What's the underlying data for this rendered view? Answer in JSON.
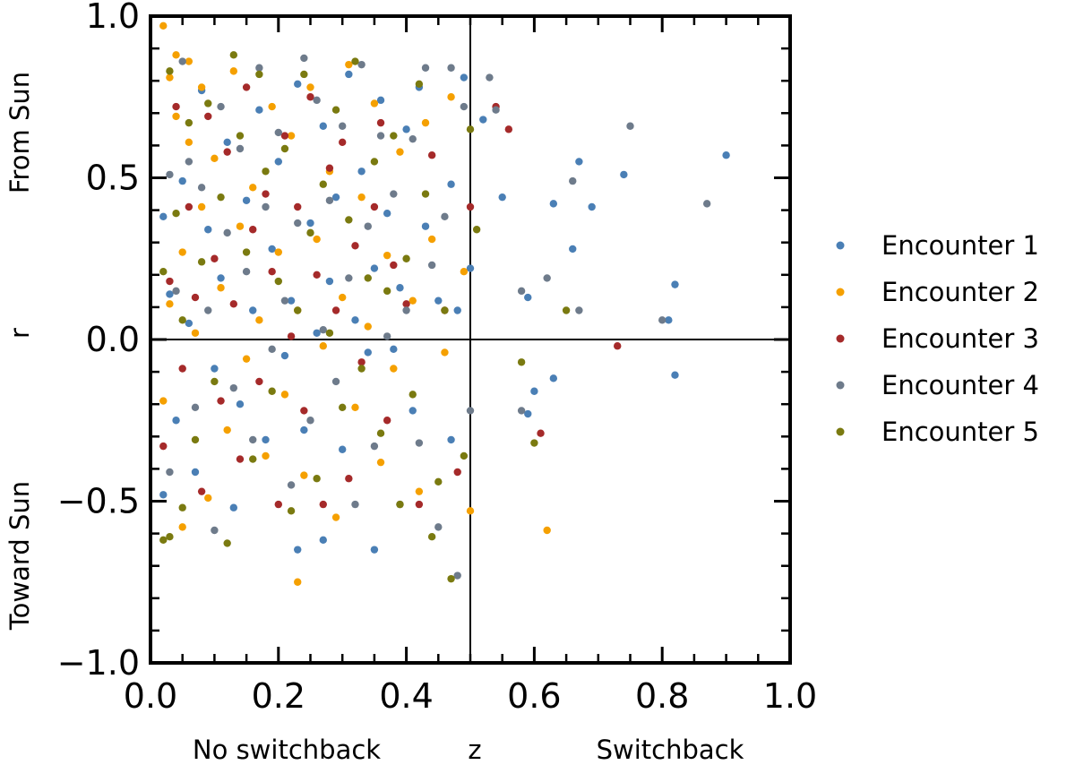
{
  "chart_data": {
    "type": "scatter",
    "title": "",
    "xlabel": "z",
    "ylabel": "r",
    "x_annotations": {
      "left": "No switchback",
      "right": "Switchback"
    },
    "y_annotations": {
      "top": "From Sun",
      "bottom": "Toward Sun"
    },
    "xlim": [
      0.0,
      1.0
    ],
    "ylim": [
      -1.0,
      1.0
    ],
    "x_ticks": [
      "0.0",
      "0.2",
      "0.4",
      "0.6",
      "0.8",
      "1.0"
    ],
    "y_ticks": [
      "1.0",
      "0.5",
      "0.0",
      "−0.5",
      "−1.0"
    ],
    "reference_lines": {
      "vertical_x": 0.5,
      "horizontal_y": 0.0
    },
    "legend_position": "right",
    "series": [
      {
        "name": "Encounter 1",
        "color": "#4a7fb5",
        "points": [
          [
            0.9,
            0.57
          ],
          [
            0.82,
            0.17
          ],
          [
            0.82,
            -0.11
          ],
          [
            0.81,
            0.06
          ],
          [
            0.74,
            0.51
          ],
          [
            0.69,
            0.41
          ],
          [
            0.67,
            0.55
          ],
          [
            0.66,
            0.28
          ],
          [
            0.63,
            0.42
          ],
          [
            0.63,
            -0.12
          ],
          [
            0.6,
            -0.16
          ],
          [
            0.59,
            -0.23
          ],
          [
            0.59,
            0.13
          ],
          [
            0.55,
            0.44
          ],
          [
            0.52,
            0.68
          ],
          [
            0.5,
            0.22
          ],
          [
            0.49,
            0.81
          ],
          [
            0.48,
            0.09
          ],
          [
            0.47,
            0.48
          ],
          [
            0.47,
            -0.31
          ],
          [
            0.45,
            0.12
          ],
          [
            0.43,
            0.35
          ],
          [
            0.42,
            0.78
          ],
          [
            0.41,
            -0.22
          ],
          [
            0.4,
            0.65
          ],
          [
            0.39,
            0.16
          ],
          [
            0.38,
            -0.03
          ],
          [
            0.37,
            0.39
          ],
          [
            0.36,
            0.74
          ],
          [
            0.35,
            -0.65
          ],
          [
            0.35,
            0.22
          ],
          [
            0.34,
            -0.04
          ],
          [
            0.33,
            0.52
          ],
          [
            0.32,
            0.06
          ],
          [
            0.31,
            0.82
          ],
          [
            0.3,
            -0.34
          ],
          [
            0.29,
            0.44
          ],
          [
            0.28,
            0.18
          ],
          [
            0.27,
            -0.62
          ],
          [
            0.27,
            0.66
          ],
          [
            0.26,
            0.02
          ],
          [
            0.25,
            0.36
          ],
          [
            0.24,
            -0.28
          ],
          [
            0.23,
            -0.65
          ],
          [
            0.23,
            0.79
          ],
          [
            0.22,
            0.12
          ],
          [
            0.21,
            -0.05
          ],
          [
            0.2,
            0.55
          ],
          [
            0.19,
            0.28
          ],
          [
            0.18,
            -0.31
          ],
          [
            0.17,
            0.71
          ],
          [
            0.16,
            0.09
          ],
          [
            0.15,
            0.43
          ],
          [
            0.14,
            -0.2
          ],
          [
            0.13,
            -0.52
          ],
          [
            0.12,
            0.61
          ],
          [
            0.11,
            0.19
          ],
          [
            0.1,
            -0.09
          ],
          [
            0.09,
            0.34
          ],
          [
            0.08,
            0.77
          ],
          [
            0.07,
            -0.41
          ],
          [
            0.06,
            0.05
          ],
          [
            0.05,
            0.49
          ],
          [
            0.04,
            -0.25
          ],
          [
            0.03,
            0.14
          ],
          [
            0.02,
            -0.48
          ],
          [
            0.02,
            0.38
          ]
        ]
      },
      {
        "name": "Encounter 2",
        "color": "#f5a000",
        "points": [
          [
            0.62,
            -0.59
          ],
          [
            0.5,
            -0.53
          ],
          [
            0.49,
            0.21
          ],
          [
            0.47,
            0.75
          ],
          [
            0.46,
            -0.04
          ],
          [
            0.44,
            0.31
          ],
          [
            0.43,
            0.67
          ],
          [
            0.42,
            -0.47
          ],
          [
            0.41,
            0.12
          ],
          [
            0.39,
            0.58
          ],
          [
            0.38,
            -0.09
          ],
          [
            0.37,
            0.26
          ],
          [
            0.36,
            -0.38
          ],
          [
            0.35,
            0.73
          ],
          [
            0.34,
            0.04
          ],
          [
            0.33,
            0.44
          ],
          [
            0.32,
            -0.21
          ],
          [
            0.31,
            0.85
          ],
          [
            0.3,
            0.13
          ],
          [
            0.29,
            -0.55
          ],
          [
            0.28,
            0.52
          ],
          [
            0.27,
            -0.02
          ],
          [
            0.26,
            0.31
          ],
          [
            0.25,
            0.78
          ],
          [
            0.24,
            -0.42
          ],
          [
            0.23,
            -0.75
          ],
          [
            0.23,
            0.09
          ],
          [
            0.22,
            0.63
          ],
          [
            0.21,
            -0.17
          ],
          [
            0.2,
            0.27
          ],
          [
            0.19,
            0.72
          ],
          [
            0.18,
            -0.36
          ],
          [
            0.17,
            0.06
          ],
          [
            0.16,
            0.47
          ],
          [
            0.15,
            -0.06
          ],
          [
            0.14,
            0.35
          ],
          [
            0.13,
            0.83
          ],
          [
            0.12,
            -0.28
          ],
          [
            0.11,
            0.16
          ],
          [
            0.1,
            0.56
          ],
          [
            0.09,
            -0.49
          ],
          [
            0.08,
            0.78
          ],
          [
            0.07,
            0.02
          ],
          [
            0.06,
            0.86
          ],
          [
            0.05,
            0.27
          ],
          [
            0.05,
            -0.58
          ],
          [
            0.04,
            0.69
          ],
          [
            0.03,
            0.11
          ],
          [
            0.03,
            0.81
          ],
          [
            0.02,
            0.97
          ],
          [
            0.02,
            -0.19
          ],
          [
            0.04,
            0.88
          ],
          [
            0.06,
            0.61
          ],
          [
            0.08,
            0.41
          ]
        ]
      },
      {
        "name": "Encounter 3",
        "color": "#a52a2a",
        "points": [
          [
            0.73,
            -0.02
          ],
          [
            0.61,
            -0.29
          ],
          [
            0.56,
            0.65
          ],
          [
            0.54,
            0.72
          ],
          [
            0.5,
            0.41
          ],
          [
            0.48,
            -0.41
          ],
          [
            0.46,
            0.09
          ],
          [
            0.44,
            0.57
          ],
          [
            0.42,
            -0.51
          ],
          [
            0.4,
            0.11
          ],
          [
            0.38,
            0.23
          ],
          [
            0.37,
            -0.25
          ],
          [
            0.36,
            0.67
          ],
          [
            0.35,
            0.41
          ],
          [
            0.33,
            -0.07
          ],
          [
            0.32,
            0.29
          ],
          [
            0.31,
            -0.43
          ],
          [
            0.3,
            0.61
          ],
          [
            0.29,
            0.09
          ],
          [
            0.28,
            0.53
          ],
          [
            0.27,
            -0.51
          ],
          [
            0.26,
            0.2
          ],
          [
            0.25,
            0.75
          ],
          [
            0.24,
            -0.22
          ],
          [
            0.23,
            0.41
          ],
          [
            0.22,
            0.01
          ],
          [
            0.21,
            0.63
          ],
          [
            0.2,
            -0.51
          ],
          [
            0.19,
            0.21
          ],
          [
            0.18,
            0.45
          ],
          [
            0.17,
            -0.13
          ],
          [
            0.16,
            0.34
          ],
          [
            0.15,
            0.78
          ],
          [
            0.14,
            -0.37
          ],
          [
            0.13,
            0.11
          ],
          [
            0.12,
            0.58
          ],
          [
            0.11,
            -0.19
          ],
          [
            0.1,
            0.25
          ],
          [
            0.09,
            0.69
          ],
          [
            0.08,
            -0.47
          ],
          [
            0.07,
            0.13
          ],
          [
            0.06,
            0.41
          ],
          [
            0.05,
            -0.09
          ],
          [
            0.04,
            0.72
          ],
          [
            0.03,
            0.18
          ],
          [
            0.02,
            -0.33
          ]
        ]
      },
      {
        "name": "Encounter 4",
        "color": "#6e7b8b",
        "points": [
          [
            0.87,
            0.42
          ],
          [
            0.8,
            0.06
          ],
          [
            0.75,
            0.66
          ],
          [
            0.67,
            0.09
          ],
          [
            0.66,
            0.49
          ],
          [
            0.62,
            0.19
          ],
          [
            0.58,
            0.15
          ],
          [
            0.58,
            -0.22
          ],
          [
            0.54,
            0.71
          ],
          [
            0.53,
            0.81
          ],
          [
            0.5,
            -0.22
          ],
          [
            0.49,
            0.72
          ],
          [
            0.48,
            -0.73
          ],
          [
            0.47,
            0.84
          ],
          [
            0.46,
            0.38
          ],
          [
            0.45,
            -0.58
          ],
          [
            0.44,
            0.23
          ],
          [
            0.43,
            0.84
          ],
          [
            0.42,
            -0.32
          ],
          [
            0.41,
            0.62
          ],
          [
            0.4,
            0.09
          ],
          [
            0.39,
            -0.51
          ],
          [
            0.38,
            0.45
          ],
          [
            0.37,
            0.01
          ],
          [
            0.36,
            0.63
          ],
          [
            0.35,
            -0.33
          ],
          [
            0.34,
            0.35
          ],
          [
            0.33,
            0.85
          ],
          [
            0.32,
            -0.51
          ],
          [
            0.31,
            0.19
          ],
          [
            0.3,
            0.66
          ],
          [
            0.29,
            -0.13
          ],
          [
            0.28,
            0.43
          ],
          [
            0.27,
            0.03
          ],
          [
            0.26,
            0.74
          ],
          [
            0.25,
            -0.25
          ],
          [
            0.24,
            0.87
          ],
          [
            0.23,
            0.36
          ],
          [
            0.22,
            -0.45
          ],
          [
            0.21,
            0.12
          ],
          [
            0.2,
            0.64
          ],
          [
            0.19,
            -0.03
          ],
          [
            0.18,
            0.41
          ],
          [
            0.17,
            0.84
          ],
          [
            0.16,
            -0.31
          ],
          [
            0.15,
            0.21
          ],
          [
            0.14,
            0.59
          ],
          [
            0.13,
            -0.15
          ],
          [
            0.12,
            0.33
          ],
          [
            0.11,
            0.72
          ],
          [
            0.1,
            -0.59
          ],
          [
            0.09,
            0.09
          ],
          [
            0.08,
            0.47
          ],
          [
            0.07,
            -0.21
          ],
          [
            0.06,
            0.55
          ],
          [
            0.05,
            0.86
          ],
          [
            0.04,
            0.15
          ],
          [
            0.03,
            -0.41
          ],
          [
            0.03,
            0.51
          ]
        ]
      },
      {
        "name": "Encounter 5",
        "color": "#7a7a10",
        "points": [
          [
            0.65,
            0.09
          ],
          [
            0.6,
            -0.32
          ],
          [
            0.58,
            -0.07
          ],
          [
            0.51,
            0.34
          ],
          [
            0.5,
            0.65
          ],
          [
            0.49,
            -0.36
          ],
          [
            0.47,
            -0.74
          ],
          [
            0.46,
            0.09
          ],
          [
            0.45,
            -0.44
          ],
          [
            0.44,
            -0.61
          ],
          [
            0.43,
            0.45
          ],
          [
            0.42,
            0.79
          ],
          [
            0.41,
            -0.17
          ],
          [
            0.4,
            0.25
          ],
          [
            0.39,
            -0.51
          ],
          [
            0.38,
            0.63
          ],
          [
            0.37,
            0.15
          ],
          [
            0.36,
            -0.29
          ],
          [
            0.35,
            0.55
          ],
          [
            0.34,
            0.19
          ],
          [
            0.33,
            -0.09
          ],
          [
            0.32,
            0.86
          ],
          [
            0.31,
            0.37
          ],
          [
            0.3,
            -0.21
          ],
          [
            0.29,
            0.71
          ],
          [
            0.28,
            0.02
          ],
          [
            0.27,
            0.48
          ],
          [
            0.26,
            -0.43
          ],
          [
            0.25,
            0.33
          ],
          [
            0.24,
            0.82
          ],
          [
            0.23,
            0.09
          ],
          [
            0.22,
            -0.53
          ],
          [
            0.21,
            0.59
          ],
          [
            0.2,
            0.18
          ],
          [
            0.19,
            -0.16
          ],
          [
            0.18,
            0.52
          ],
          [
            0.17,
            0.82
          ],
          [
            0.16,
            -0.37
          ],
          [
            0.15,
            0.27
          ],
          [
            0.14,
            0.63
          ],
          [
            0.13,
            0.88
          ],
          [
            0.12,
            -0.63
          ],
          [
            0.11,
            0.44
          ],
          [
            0.1,
            -0.13
          ],
          [
            0.09,
            0.73
          ],
          [
            0.08,
            0.24
          ],
          [
            0.07,
            -0.31
          ],
          [
            0.06,
            0.67
          ],
          [
            0.05,
            0.06
          ],
          [
            0.05,
            -0.52
          ],
          [
            0.04,
            0.39
          ],
          [
            0.03,
            -0.61
          ],
          [
            0.03,
            0.83
          ],
          [
            0.02,
            0.21
          ],
          [
            0.02,
            -0.62
          ]
        ]
      }
    ]
  }
}
